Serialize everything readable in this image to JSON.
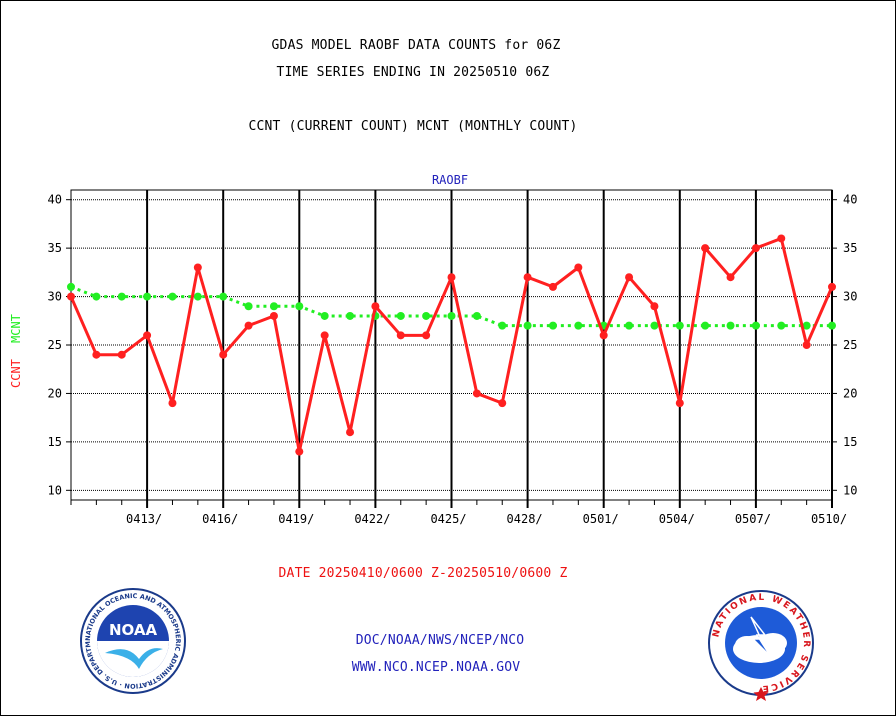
{
  "header": {
    "title_line1": "GDAS MODEL RAOBF DATA COUNTS for 06Z",
    "title_line2": "TIME SERIES ENDING IN 20250510 06Z",
    "subtitle": "CCNT (CURRENT COUNT) MCNT (MONTHLY COUNT)"
  },
  "footer": {
    "date_range": "DATE 20250410/0600 Z-20250510/0600 Z",
    "org_line": "DOC/NOAA/NWS/NCEP/NCO",
    "website": "WWW.NCO.NCEP.NOAA.GOV",
    "noaa_logo_text": "NOAA",
    "noaa_ring_text": "NATIONAL OCEANIC AND ATMOSPHERIC ADMINISTRATION · U.S. DEPARTMENT OF COMMERCE ·",
    "nws_ring_text": "NATIONAL WEATHER SERVICE"
  },
  "colors": {
    "ccnt": "#ff2020",
    "mcnt": "#22ee22",
    "chart_label": "#2222bb",
    "footer_link": "#2222bb",
    "date_text": "#ee1111"
  },
  "chart_data": {
    "type": "line",
    "title": "RAOBF",
    "ylabel_ccnt": "CCNT",
    "ylabel_mcnt": "MCNT",
    "ylim": [
      9,
      41
    ],
    "y_ticks": [
      10,
      15,
      20,
      25,
      30,
      35,
      40
    ],
    "grid": true,
    "x_tick_labels": [
      "0413/",
      "0416/",
      "0419/",
      "0422/",
      "0425/",
      "0428/",
      "0501/",
      "0504/",
      "0507/",
      "0510/"
    ],
    "series": [
      {
        "name": "CCNT",
        "values": [
          30,
          24,
          24,
          26,
          19,
          33,
          24,
          27,
          28,
          14,
          26,
          16,
          29,
          26,
          26,
          32,
          20,
          19,
          32,
          31,
          33,
          26,
          32,
          29,
          19,
          35,
          32,
          35,
          36,
          25,
          31
        ]
      },
      {
        "name": "MCNT",
        "values": [
          31,
          30,
          30,
          30,
          30,
          30,
          30,
          29,
          29,
          29,
          28,
          28,
          28,
          28,
          28,
          28,
          28,
          27,
          27,
          27,
          27,
          27,
          27,
          27,
          27,
          27,
          27,
          27,
          27,
          27,
          27
        ]
      }
    ]
  }
}
